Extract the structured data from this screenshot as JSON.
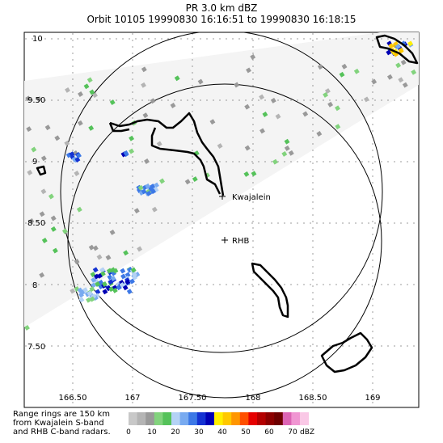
{
  "header": {
    "line1": "PR  3.0 km dBZ",
    "line2": "Orbit 10105 19990830 16:16:51 to 19990830 16:18:15"
  },
  "map": {
    "lon_ticks": [
      "166.50",
      "167",
      "167.50",
      "168",
      "168.50",
      "169"
    ],
    "lat_ticks": [
      "10",
      "9.50",
      "9",
      "8.50",
      "8",
      "7.50"
    ],
    "stations": [
      {
        "name": "Kwajalein",
        "label": "Kwajalein"
      },
      {
        "name": "RHB",
        "label": "RHB"
      }
    ]
  },
  "legend": {
    "note_lines": [
      "Range rings are 150 km",
      "from Kwajalein S-band",
      "and RHB C-band radars."
    ],
    "tick_labels": [
      "0",
      "10",
      "20",
      "30",
      "40",
      "50",
      "60",
      "70"
    ],
    "unit": "dBZ",
    "colors": [
      "#c8c8c8",
      "#b4b4b4",
      "#999999",
      "#82d37d",
      "#55c25a",
      "#b4d2f5",
      "#78aaf0",
      "#3c78e6",
      "#1432d2",
      "#0000b4",
      "#fff000",
      "#ffc800",
      "#ff9600",
      "#ff5000",
      "#e60000",
      "#b40000",
      "#8c0000",
      "#6e0000",
      "#dc64b4",
      "#f096d2",
      "#fac8e6"
    ]
  }
}
